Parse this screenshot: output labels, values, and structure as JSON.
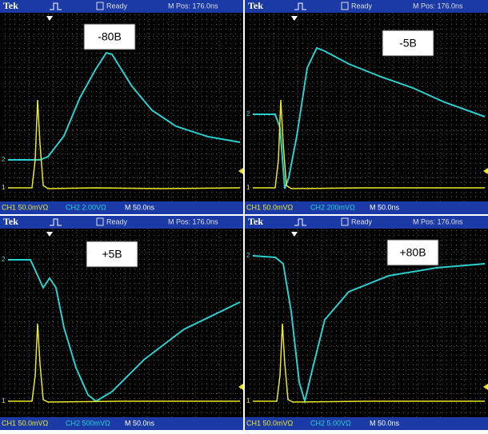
{
  "panels": [
    {
      "brand": "Tek",
      "status": "Ready",
      "position": "M Pos: 176.0ns",
      "label": "-80B",
      "ch2_marker": "2",
      "ch1_marker": "1",
      "ch1": "CH1  50.0mVΩ",
      "ch2": "CH2  2.00VΩ",
      "timebase": "M 50.0ns"
    },
    {
      "brand": "Tek",
      "status": "Ready",
      "position": "M Pos: 176.0ns",
      "label": "-5B",
      "ch2_marker": "2",
      "ch1_marker": "1",
      "ch1": "CH1  50.0mVΩ",
      "ch2": "CH2  200mVΩ",
      "timebase": "M 50.0ns"
    },
    {
      "brand": "Tek",
      "status": "Ready",
      "position": "M Pos: 176.0ns",
      "label": "+5B",
      "ch2_marker": "2",
      "ch1_marker": "1",
      "ch1": "CH1  50.0mVΩ",
      "ch2": "CH2  500mVΩ",
      "timebase": "M 50.0ns"
    },
    {
      "brand": "Tek",
      "status": "Ready",
      "position": "M Pos: 176.0ns",
      "label": "+80B",
      "ch2_marker": "2",
      "ch1_marker": "1",
      "ch1": "CH1  50.0mVΩ",
      "ch2": "CH2  5.00VΩ",
      "timebase": "M 50.0ns"
    }
  ]
}
